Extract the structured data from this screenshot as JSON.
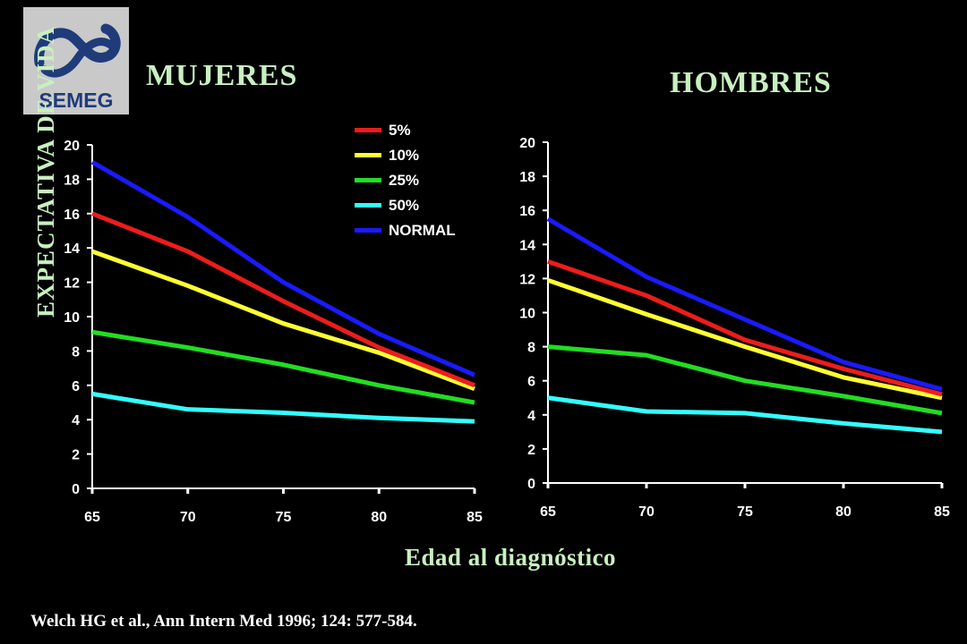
{
  "logo": {
    "text": "SEMEG"
  },
  "titles": {
    "mujeres": "MUJERES",
    "hombres": "HOMBRES"
  },
  "ylabel": "EXPECTATIVA DE VIDA",
  "xlabel": "Edad al diagnóstico",
  "citation": "Welch HG et al., Ann Intern Med 1996; 124: 577-584.",
  "colors": {
    "5%": "#ee1c1c",
    "10%": "#ffff33",
    "25%": "#22dd22",
    "50%": "#33ffff",
    "NORMAL": "#1a1aff",
    "axis": "#ffffff",
    "background": "#000000"
  },
  "legend": [
    {
      "label": "5%",
      "color": "#ee1c1c"
    },
    {
      "label": "10%",
      "color": "#ffff33"
    },
    {
      "label": "25%",
      "color": "#22dd22"
    },
    {
      "label": "50%",
      "color": "#33ffff"
    },
    {
      "label": "NORMAL",
      "color": "#1a1aff"
    }
  ],
  "chart_data": [
    {
      "type": "line",
      "title": "MUJERES",
      "xlabel": "Edad al diagnóstico",
      "ylabel": "EXPECTATIVA DE VIDA",
      "x": [
        65,
        70,
        75,
        80,
        85
      ],
      "xticks": [
        65,
        70,
        75,
        80,
        85
      ],
      "yticks": [
        0,
        2,
        4,
        6,
        8,
        10,
        12,
        14,
        16,
        18,
        20
      ],
      "xlim": [
        65,
        85
      ],
      "ylim": [
        0,
        20
      ],
      "grid": false,
      "legend_position": "top-right",
      "series": [
        {
          "name": "NORMAL",
          "values": [
            19.0,
            15.8,
            12.0,
            9.0,
            6.6
          ]
        },
        {
          "name": "5%",
          "values": [
            16.0,
            13.8,
            10.9,
            8.2,
            6.0
          ]
        },
        {
          "name": "10%",
          "values": [
            13.8,
            11.8,
            9.6,
            7.9,
            5.8
          ]
        },
        {
          "name": "25%",
          "values": [
            9.1,
            8.2,
            7.2,
            6.0,
            5.0
          ]
        },
        {
          "name": "50%",
          "values": [
            5.5,
            4.6,
            4.4,
            4.1,
            3.9
          ]
        }
      ]
    },
    {
      "type": "line",
      "title": "HOMBRES",
      "xlabel": "Edad al diagnóstico",
      "ylabel": "EXPECTATIVA DE VIDA",
      "x": [
        65,
        70,
        75,
        80,
        85
      ],
      "xticks": [
        65,
        70,
        75,
        80,
        85
      ],
      "yticks": [
        0,
        2,
        4,
        6,
        8,
        10,
        12,
        14,
        16,
        18,
        20
      ],
      "xlim": [
        65,
        85
      ],
      "ylim": [
        0,
        20
      ],
      "grid": false,
      "legend_position": "top-right",
      "series": [
        {
          "name": "NORMAL",
          "values": [
            15.5,
            12.1,
            9.6,
            7.1,
            5.5
          ]
        },
        {
          "name": "5%",
          "values": [
            13.0,
            11.0,
            8.4,
            6.7,
            5.2
          ]
        },
        {
          "name": "10%",
          "values": [
            11.9,
            9.9,
            8.0,
            6.2,
            5.0
          ]
        },
        {
          "name": "25%",
          "values": [
            8.0,
            7.5,
            6.0,
            5.1,
            4.1
          ]
        },
        {
          "name": "50%",
          "values": [
            5.0,
            4.2,
            4.1,
            3.5,
            3.0
          ]
        }
      ]
    }
  ]
}
